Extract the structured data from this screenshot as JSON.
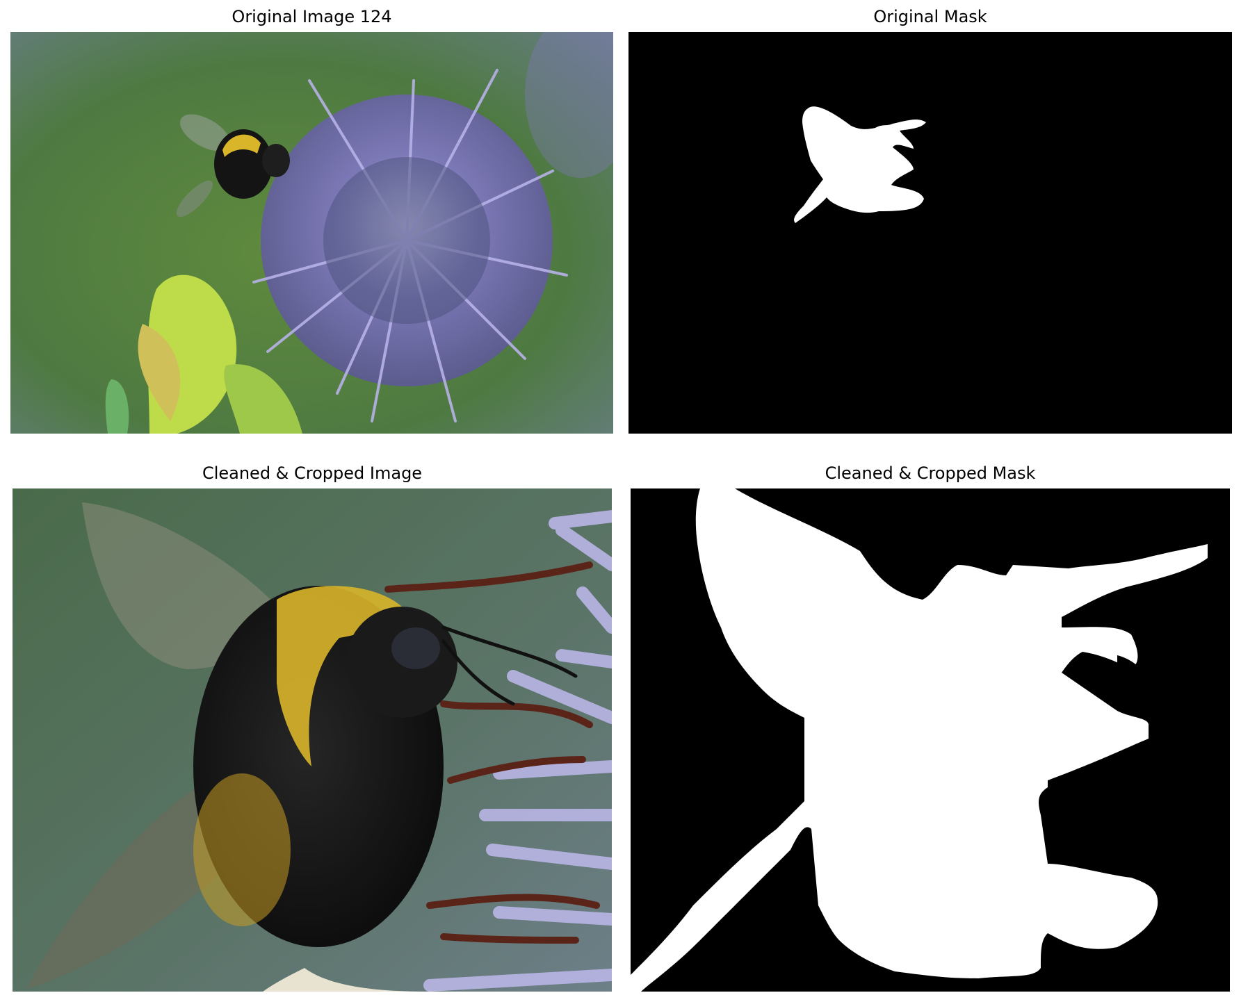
{
  "panels": {
    "original_image": {
      "title": "Original Image 124"
    },
    "original_mask": {
      "title": "Original Mask"
    },
    "cropped_image": {
      "title": "Cleaned & Cropped Image"
    },
    "cropped_mask": {
      "title": "Cleaned & Cropped Mask"
    }
  },
  "colors": {
    "mask_background": "#000000",
    "mask_foreground": "#ffffff",
    "background_green": "#5a7a45",
    "flower_purple": "#8a86c8",
    "leaf_yellow_green": "#b9d84a",
    "bee_yellow": "#d9b52a",
    "bee_black": "#141414"
  }
}
